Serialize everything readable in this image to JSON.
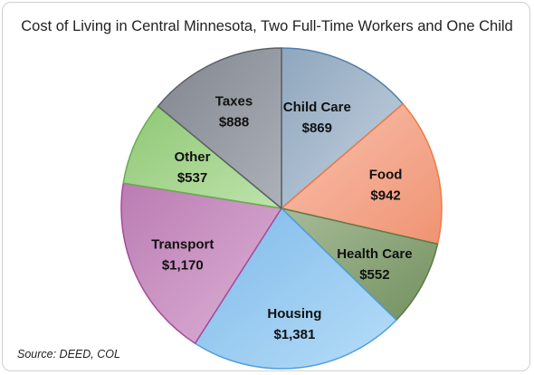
{
  "chart_data": {
    "type": "pie",
    "title": "Cost of Living in Central Minnesota, Two Full-Time Workers and One Child",
    "source": "Source: DEED, COL",
    "slices": [
      {
        "name": "Child Care",
        "value": 869,
        "label": "$869",
        "color": "#a7b9cd",
        "stroke": "#4e7fae",
        "gradFrom": "#8fa6bd",
        "gradTo": "#c4d2e0"
      },
      {
        "name": "Food",
        "value": 942,
        "label": "$942",
        "color": "#f6ab8f",
        "stroke": "#ef7a45",
        "gradFrom": "#f8c2ae",
        "gradTo": "#f09373"
      },
      {
        "name": "Health Care",
        "value": 552,
        "label": "$552",
        "color": "#8aa278",
        "stroke": "#5c7b47",
        "gradFrom": "#a7bb98",
        "gradTo": "#73905f"
      },
      {
        "name": "Housing",
        "value": 1381,
        "label": "$1,381",
        "color": "#8fc7f0",
        "stroke": "#4f9fdc",
        "gradFrom": "#7fbaea",
        "gradTo": "#b6ddf8"
      },
      {
        "name": "Transport",
        "value": 1170,
        "label": "$1,170",
        "color": "#cc95c6",
        "stroke": "#a54a99",
        "gradFrom": "#bb7cb3",
        "gradTo": "#dcb2d6"
      },
      {
        "name": "Other",
        "value": 537,
        "label": "$537",
        "color": "#a4d58d",
        "stroke": "#6aab4f",
        "gradFrom": "#8fc774",
        "gradTo": "#bee3ac"
      },
      {
        "name": "Taxes",
        "value": 888,
        "label": "$888",
        "color": "#959aa3",
        "stroke": "#5b5f67",
        "gradFrom": "#80858f",
        "gradTo": "#adb1b8"
      }
    ],
    "start_angle_deg": 0,
    "direction": "clockwise"
  }
}
